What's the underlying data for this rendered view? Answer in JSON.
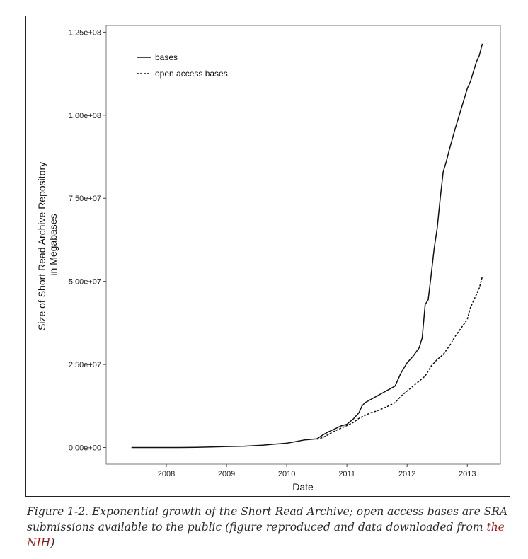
{
  "chart_data": {
    "type": "line",
    "title": "",
    "xlabel": "Date",
    "ylabel_lines": [
      "Size of Short Read Archive Repository",
      "in Megabases"
    ],
    "xlim": [
      2007.0,
      2013.55
    ],
    "ylim": [
      -5000000,
      127000000
    ],
    "x_ticks": [
      2008,
      2009,
      2010,
      2011,
      2012,
      2013
    ],
    "x_tick_labels": [
      "2008",
      "2009",
      "2010",
      "2011",
      "2012",
      "2013"
    ],
    "y_ticks": [
      0,
      25000000,
      50000000,
      75000000,
      100000000,
      125000000
    ],
    "y_tick_labels": [
      "0.00e+00",
      "2.50e+07",
      "5.00e+07",
      "7.50e+07",
      "1.00e+08",
      "1.25e+08"
    ],
    "grid": false,
    "legend_position": "top-left",
    "series": [
      {
        "name": "bases",
        "style": "solid",
        "color": "#111111",
        "x": [
          2007.42,
          2007.8,
          2008.2,
          2008.5,
          2008.8,
          2009.0,
          2009.3,
          2009.6,
          2009.8,
          2010.0,
          2010.15,
          2010.3,
          2010.5,
          2010.6,
          2010.7,
          2010.8,
          2010.9,
          2011.0,
          2011.1,
          2011.2,
          2011.25,
          2011.3,
          2011.4,
          2011.5,
          2011.6,
          2011.7,
          2011.8,
          2011.85,
          2011.9,
          2012.0,
          2012.1,
          2012.2,
          2012.25,
          2012.3,
          2012.35,
          2012.4,
          2012.45,
          2012.5,
          2012.55,
          2012.6,
          2012.65,
          2012.7,
          2012.8,
          2012.9,
          2012.95,
          2013.0,
          2013.05,
          2013.1,
          2013.15,
          2013.2,
          2013.25
        ],
        "y": [
          0,
          0,
          0,
          50000,
          200000,
          300000,
          400000,
          700000,
          1000000,
          1300000,
          1800000,
          2300000,
          2600000,
          3800000,
          4800000,
          5600000,
          6500000,
          7000000,
          8500000,
          10500000,
          12500000,
          13500000,
          14500000,
          15500000,
          16500000,
          17500000,
          18500000,
          20500000,
          22500000,
          25500000,
          27500000,
          30000000,
          33000000,
          43000000,
          44500000,
          52000000,
          60000000,
          66000000,
          75000000,
          83000000,
          86000000,
          89500000,
          96000000,
          102000000,
          105000000,
          108000000,
          110000000,
          113000000,
          116000000,
          118000000,
          121500000
        ]
      },
      {
        "name": "open access bases",
        "style": "dashed",
        "color": "#111111",
        "x": [
          2010.5,
          2010.6,
          2010.7,
          2010.8,
          2010.9,
          2011.0,
          2011.1,
          2011.2,
          2011.3,
          2011.4,
          2011.5,
          2011.6,
          2011.7,
          2011.8,
          2011.9,
          2012.0,
          2012.1,
          2012.2,
          2012.3,
          2012.4,
          2012.5,
          2012.6,
          2012.7,
          2012.8,
          2012.9,
          2013.0,
          2013.05,
          2013.1,
          2013.15,
          2013.2,
          2013.25
        ],
        "y": [
          2500000,
          3000000,
          4000000,
          5000000,
          5800000,
          6600000,
          7500000,
          8800000,
          9700000,
          10500000,
          11000000,
          11800000,
          12600000,
          13500000,
          15500000,
          17000000,
          18500000,
          20000000,
          21500000,
          24500000,
          26500000,
          28000000,
          30500000,
          33500000,
          36000000,
          38500000,
          42000000,
          44000000,
          46000000,
          48000000,
          51500000
        ]
      }
    ]
  },
  "caption": {
    "text_before_link": "Figure 1-2. Exponential growth of the Short Read Archive; open access bases are SRA submissions available to the public (figure reproduced and data downloaded from ",
    "link_text": "the NIH",
    "text_after_link": ")"
  }
}
